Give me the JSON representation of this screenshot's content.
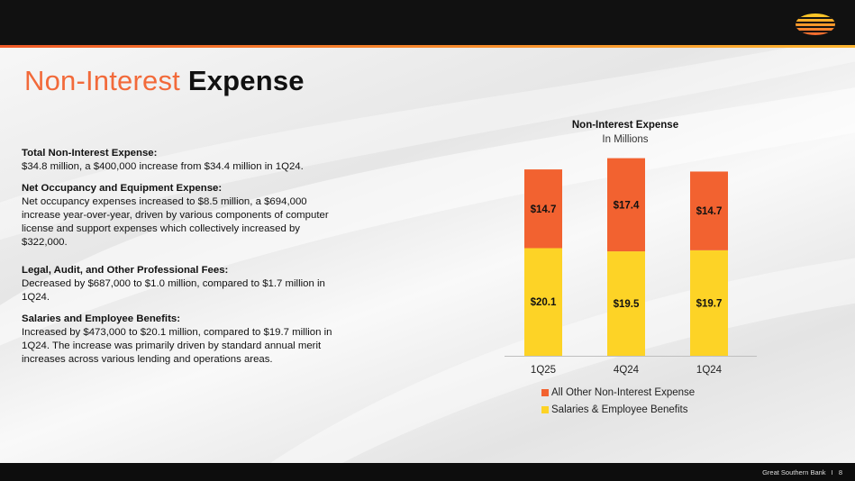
{
  "slide": {
    "title_light": "Non-Interest",
    "title_bold": "Expense",
    "footer_company": "Great Southern Bank",
    "footer_separator": "I",
    "page_number": "8"
  },
  "paragraphs": [
    {
      "heading": "Total Non-Interest Expense:",
      "text": "$34.8 million, a $400,000 increase from $34.4 million in 1Q24."
    },
    {
      "heading": "Net Occupancy and Equipment Expense:",
      "text": "Net occupancy expenses increased to $8.5 million, a $694,000 increase year-over-year, driven by various components of computer license and support expenses which collectively increased by $322,000."
    },
    {
      "heading": "Legal, Audit, and Other Professional Fees:",
      "text": "Decreased by $687,000 to $1.0 million, compared to $1.7 million in 1Q24."
    },
    {
      "heading": "Salaries and Employee Benefits:",
      "text": "Increased by $473,000 to $20.1 million, compared to $19.7 million in 1Q24. The increase was primarily driven by standard annual merit increases across various lending and operations areas."
    }
  ],
  "chart_data": {
    "type": "bar",
    "stacked": true,
    "title": "Non-Interest Expense",
    "subtitle": "In Millions",
    "categories": [
      "1Q25",
      "4Q24",
      "1Q24"
    ],
    "series": [
      {
        "name": "Salaries & Employee Benefits",
        "values": [
          20.1,
          19.5,
          19.7
        ],
        "labels": [
          "$20.1",
          "$19.5",
          "$19.7"
        ],
        "color": "#fdd326"
      },
      {
        "name": "All Other Non-Interest Expense",
        "values": [
          14.7,
          17.4,
          14.7
        ],
        "labels": [
          "$14.7",
          "$17.4",
          "$14.7"
        ],
        "color": "#f26230"
      }
    ],
    "ylim": [
      0,
      37
    ],
    "grid": false,
    "legend_position": "bottom"
  },
  "legend_order": [
    1,
    0
  ],
  "colors": {
    "accent": "#f26a3a",
    "dark": "#111111"
  }
}
